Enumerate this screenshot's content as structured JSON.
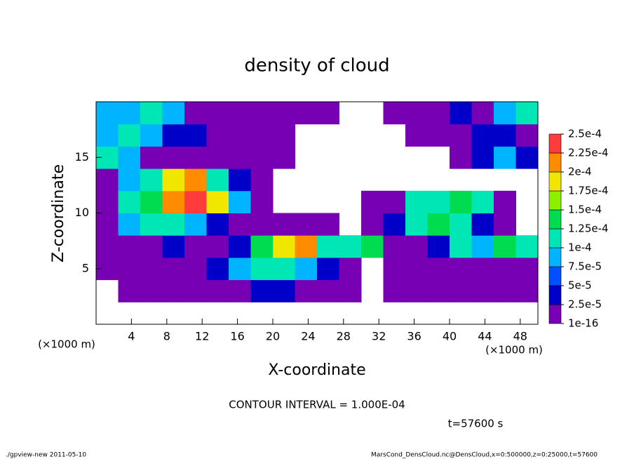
{
  "chart_data": {
    "type": "contour",
    "title": "density of cloud",
    "x_label": "X-coordinate",
    "y_label": "Z-coordinate",
    "y_unit_label": "(×1000 m)",
    "x_unit_label": "(×1000 m)",
    "interval_note": "CONTOUR INTERVAL = 1.000E-04",
    "time_label": "t=57600 s",
    "footer_left": "./gpview-new  2011-05-10",
    "footer_right": "MarsCond_DensCloud.nc@DensCloud,x=0:500000,z=0:25000,t=57600",
    "xlim": [
      0,
      50
    ],
    "ylim": [
      0,
      20
    ],
    "xticks": [
      4,
      8,
      12,
      16,
      20,
      24,
      28,
      32,
      36,
      40,
      44,
      48
    ],
    "yticks": [
      5,
      10,
      15
    ],
    "xbins": [
      0,
      2.5,
      5,
      7.5,
      10,
      12.5,
      15,
      17.5,
      20,
      22.5,
      25,
      27.5,
      30,
      32.5,
      35,
      37.5,
      40,
      42.5,
      45,
      47.5,
      50
    ],
    "ybins": [
      0,
      2,
      4,
      6,
      8,
      10,
      12,
      14,
      16,
      18,
      20
    ],
    "levels": [
      {
        "value": 1e-16,
        "label": "1e-16"
      },
      {
        "value": 2.5e-05,
        "label": "2.5e-5"
      },
      {
        "value": 5e-05,
        "label": "5e-5"
      },
      {
        "value": 7.5e-05,
        "label": "7.5e-5"
      },
      {
        "value": 0.0001,
        "label": "1e-4"
      },
      {
        "value": 0.000125,
        "label": "1.25e-4"
      },
      {
        "value": 0.00015,
        "label": "1.5e-4"
      },
      {
        "value": 0.000175,
        "label": "1.75e-4"
      },
      {
        "value": 0.0002,
        "label": "2e-4"
      },
      {
        "value": 0.000225,
        "label": "2.25e-4"
      },
      {
        "value": 0.00025,
        "label": "2.5e-4"
      }
    ],
    "colors": [
      "#7800b4",
      "#0000c8",
      "#0050ff",
      "#00b4ff",
      "#00e6b4",
      "#00dc50",
      "#8cf000",
      "#f0e600",
      "#ff8c00",
      "#ff3c3c"
    ],
    "values": [
      [
        null,
        null,
        null,
        null,
        null,
        null,
        null,
        null,
        null,
        null,
        null,
        null,
        null,
        null,
        null,
        null,
        null,
        null,
        null,
        null
      ],
      [
        null,
        1e-05,
        1e-05,
        1e-05,
        1e-05,
        1e-05,
        1e-05,
        3e-05,
        3e-05,
        1e-05,
        1e-05,
        1e-05,
        null,
        1e-05,
        1e-05,
        1e-05,
        1e-05,
        1e-05,
        1e-05,
        1e-05
      ],
      [
        1e-05,
        1e-05,
        1e-05,
        1e-05,
        1e-05,
        3e-05,
        8e-05,
        0.00011,
        0.00011,
        8e-05,
        3e-05,
        1e-05,
        null,
        1e-05,
        1e-05,
        1e-05,
        1e-05,
        1e-05,
        1e-05,
        1e-05
      ],
      [
        1e-05,
        1e-05,
        1e-05,
        3e-05,
        1e-05,
        1e-05,
        3e-05,
        0.00014,
        0.00018,
        0.00021,
        0.00011,
        0.00011,
        0.00014,
        1e-05,
        1e-05,
        3e-05,
        0.00011,
        8e-05,
        0.00014,
        0.00011
      ],
      [
        1e-05,
        8e-05,
        0.00011,
        0.00011,
        8e-05,
        3e-05,
        1e-05,
        1e-05,
        1e-05,
        1e-05,
        1e-05,
        null,
        1e-05,
        3e-05,
        0.00011,
        0.00014,
        0.00011,
        3e-05,
        1e-05,
        null
      ],
      [
        1e-05,
        0.00011,
        0.00014,
        0.00021,
        0.00023,
        0.00018,
        8e-05,
        1e-05,
        null,
        null,
        null,
        null,
        1e-05,
        1e-05,
        0.00011,
        0.00011,
        0.00014,
        0.00011,
        1e-05,
        null
      ],
      [
        1e-05,
        8e-05,
        0.00011,
        0.00018,
        0.00021,
        0.00011,
        3e-05,
        1e-05,
        null,
        null,
        null,
        null,
        null,
        null,
        null,
        null,
        null,
        null,
        null,
        null
      ],
      [
        0.00011,
        8e-05,
        1e-05,
        1e-05,
        1e-05,
        1e-05,
        1e-05,
        1e-05,
        1e-05,
        null,
        null,
        null,
        null,
        null,
        null,
        null,
        1e-05,
        3e-05,
        8e-05,
        3e-05
      ],
      [
        8e-05,
        0.00011,
        8e-05,
        3e-05,
        3e-05,
        1e-05,
        1e-05,
        1e-05,
        1e-05,
        null,
        null,
        null,
        null,
        null,
        1e-05,
        1e-05,
        1e-05,
        3e-05,
        3e-05,
        1e-05
      ],
      [
        8e-05,
        8e-05,
        0.00011,
        8e-05,
        1e-05,
        1e-05,
        1e-05,
        1e-05,
        1e-05,
        1e-05,
        1e-05,
        null,
        null,
        1e-05,
        1e-05,
        1e-05,
        3e-05,
        1e-05,
        8e-05,
        0.00011
      ]
    ]
  }
}
